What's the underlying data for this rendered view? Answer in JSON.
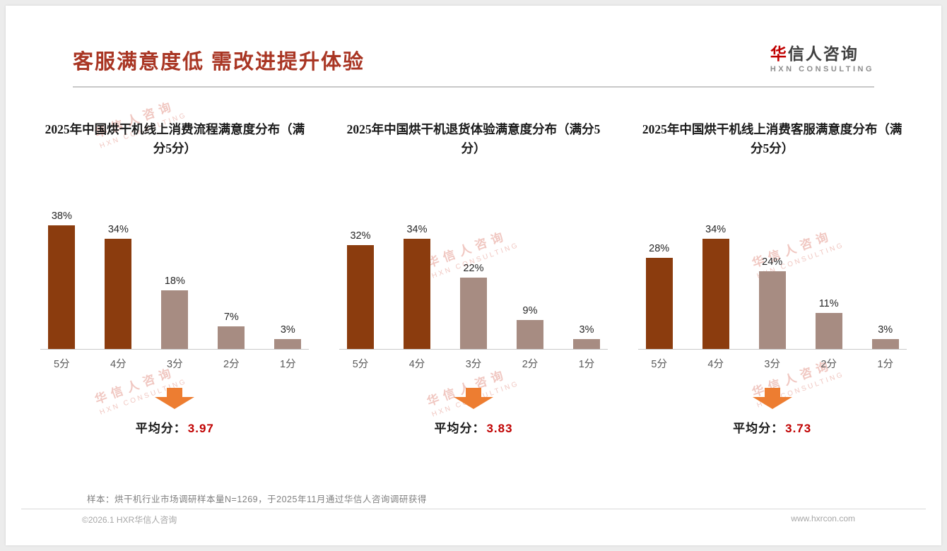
{
  "slide": {
    "title": "客服满意度低 需改进提升体验",
    "logo": {
      "zh_first": "华",
      "zh_rest": "信人咨询",
      "en": "HXN CONSULTING"
    },
    "watermark": {
      "zh": "华信人咨询",
      "en": "HXN CONSULTING"
    },
    "note": "样本：烘干机行业市场调研样本量N=1269，于2025年11月通过华信人咨询调研获得",
    "footer": {
      "left": "©2026.1 HXR华信人咨询",
      "right": "www.hxrcon.com"
    }
  },
  "colors": {
    "title": "#A93624",
    "arrow": "#ED7D31",
    "average_value": "#C00000",
    "watermark": "#E59A8F",
    "bar_dark": "#8B3C0E",
    "bar_light": "#A78C82"
  },
  "chart_data": [
    {
      "type": "bar",
      "title": "2025年中国烘干机线上消费流程满意度分布（满分5分）",
      "categories": [
        "5分",
        "4分",
        "3分",
        "2分",
        "1分"
      ],
      "values": [
        38,
        34,
        18,
        7,
        3
      ],
      "unit": "%",
      "ylim": [
        0,
        40
      ],
      "grid": false,
      "bar_colors": [
        "#8B3C0E",
        "#8B3C0E",
        "#A78C82",
        "#A78C82",
        "#A78C82"
      ],
      "average_label": "平均分：",
      "average": "3.97"
    },
    {
      "type": "bar",
      "title": "2025年中国烘干机退货体验满意度分布（满分5分）",
      "categories": [
        "5分",
        "4分",
        "3分",
        "2分",
        "1分"
      ],
      "values": [
        32,
        34,
        22,
        9,
        3
      ],
      "unit": "%",
      "ylim": [
        0,
        40
      ],
      "grid": false,
      "bar_colors": [
        "#8B3C0E",
        "#8B3C0E",
        "#A78C82",
        "#A78C82",
        "#A78C82"
      ],
      "average_label": "平均分：",
      "average": "3.83"
    },
    {
      "type": "bar",
      "title": "2025年中国烘干机线上消费客服满意度分布（满分5分）",
      "categories": [
        "5分",
        "4分",
        "3分",
        "2分",
        "1分"
      ],
      "values": [
        28,
        34,
        24,
        11,
        3
      ],
      "unit": "%",
      "ylim": [
        0,
        40
      ],
      "grid": false,
      "bar_colors": [
        "#8B3C0E",
        "#8B3C0E",
        "#A78C82",
        "#A78C82",
        "#A78C82"
      ],
      "average_label": "平均分：",
      "average": "3.73"
    }
  ]
}
